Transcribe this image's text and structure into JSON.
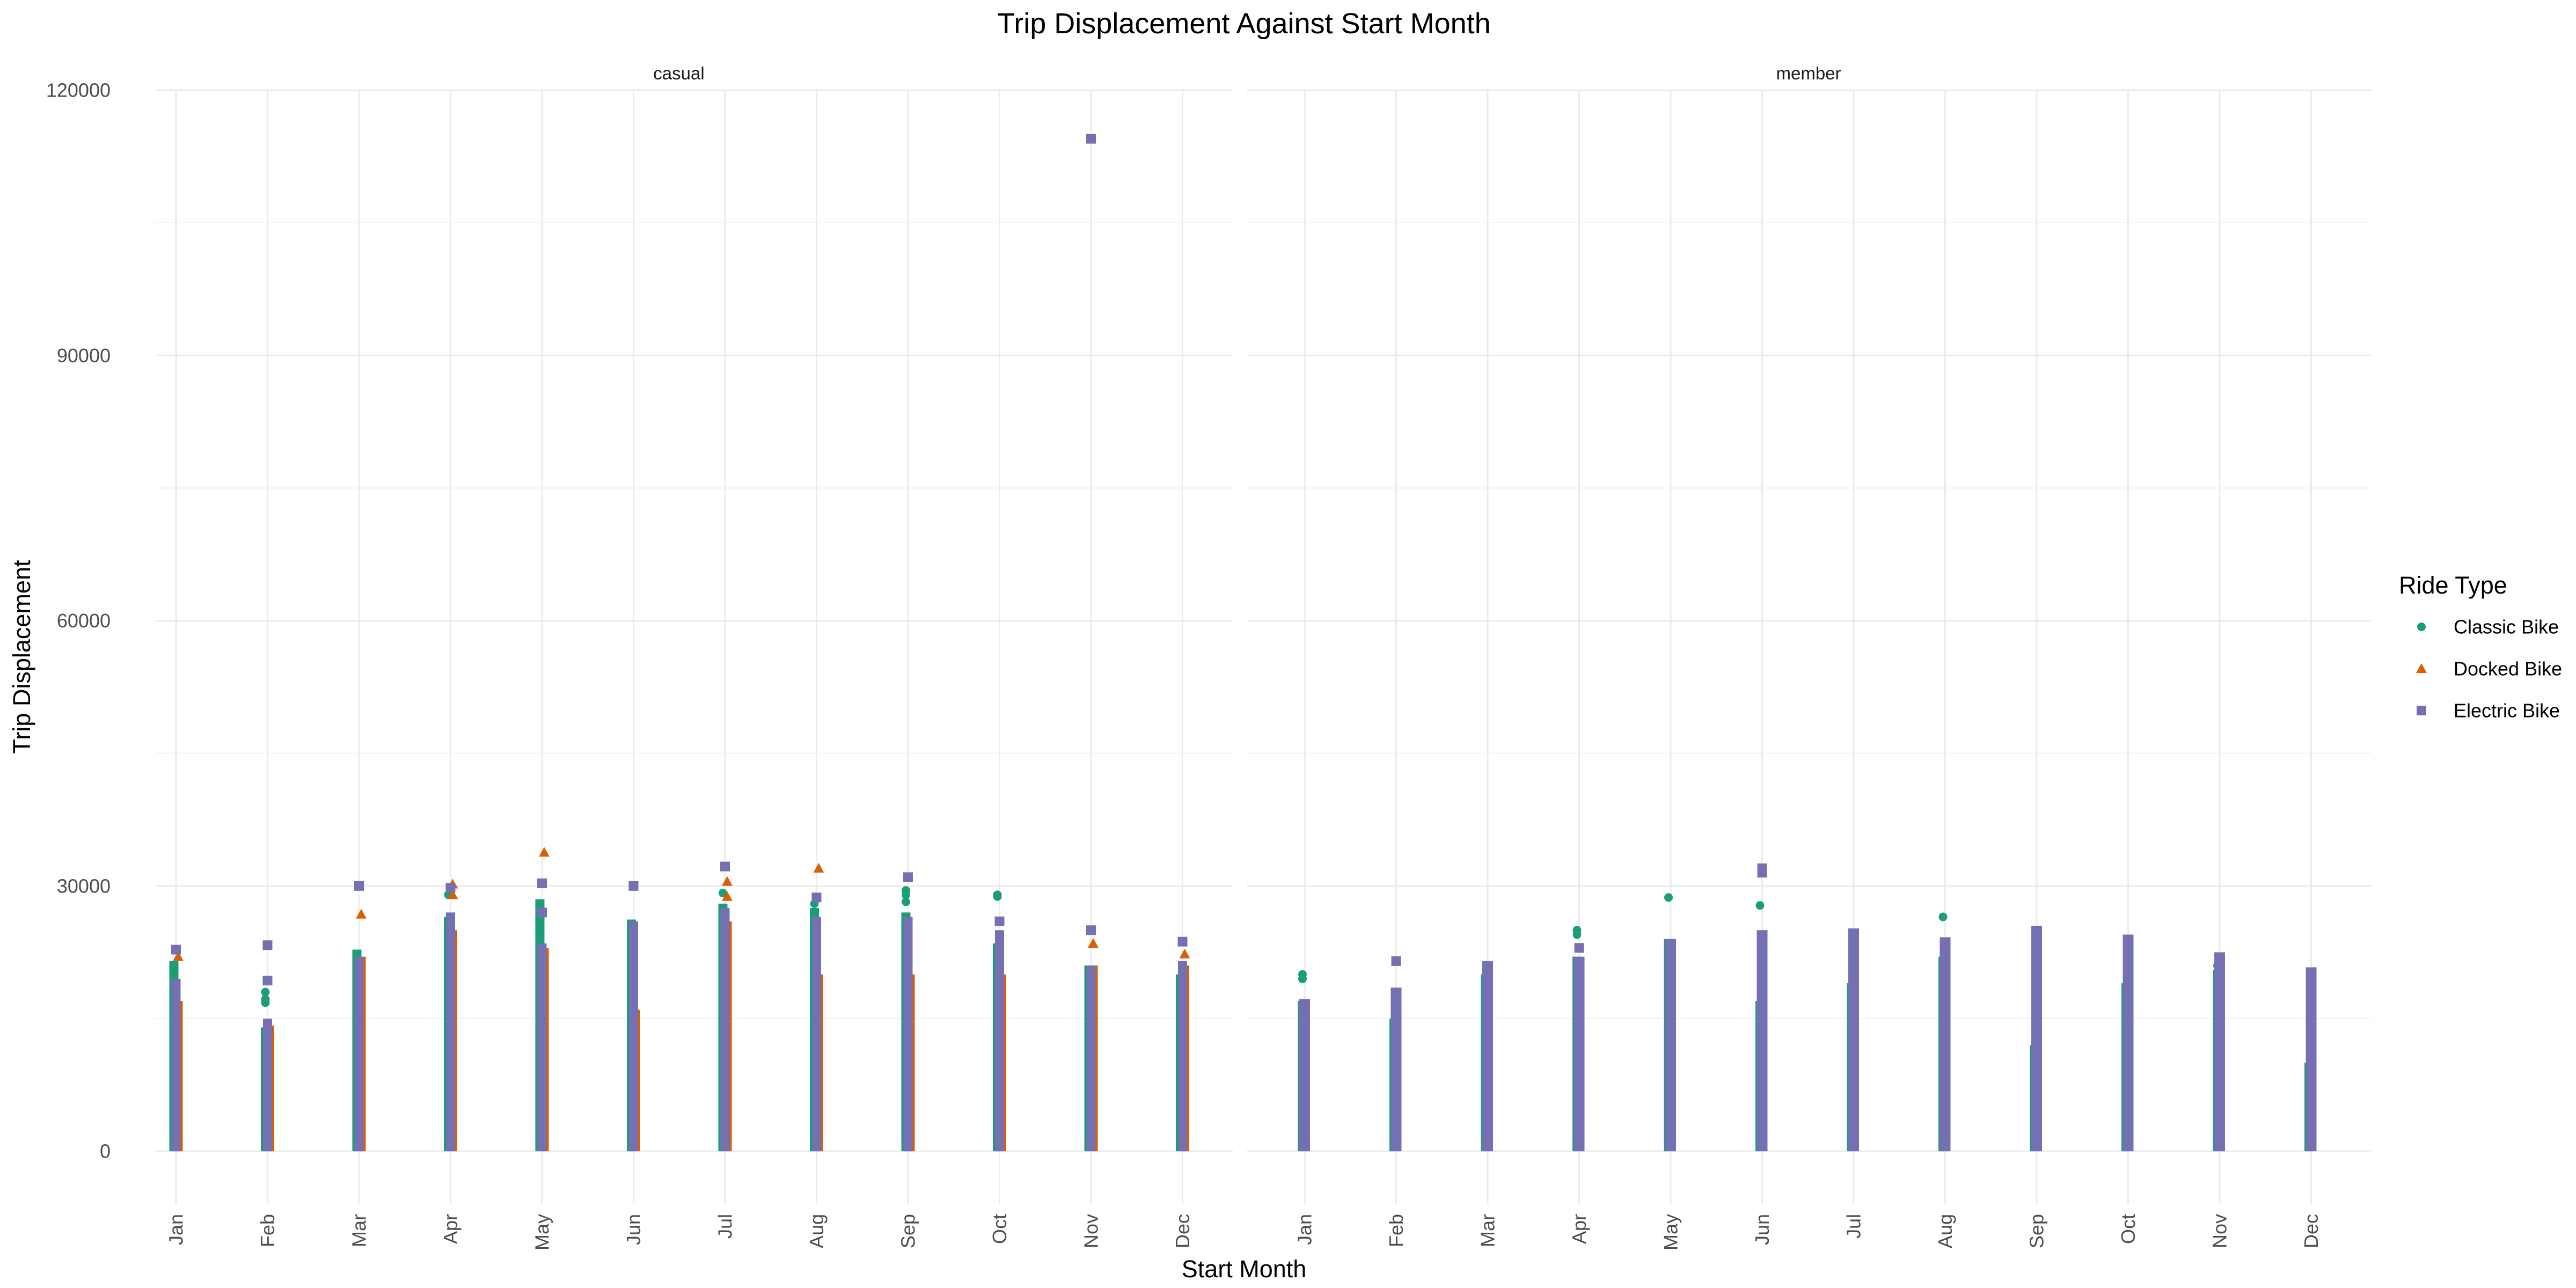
{
  "chart_data": {
    "type": "scatter",
    "title": "Trip Displacement Against Start Month",
    "xlabel": "Start Month",
    "ylabel": "Trip Displacement",
    "categories": [
      "Jan",
      "Feb",
      "Mar",
      "Apr",
      "May",
      "Jun",
      "Jul",
      "Aug",
      "Sep",
      "Oct",
      "Nov",
      "Dec"
    ],
    "yticks": [
      0,
      30000,
      60000,
      90000,
      120000
    ],
    "ylim": [
      -6000,
      120000
    ],
    "grid": true,
    "legend": {
      "title": "Ride Type",
      "placement": "right",
      "entries": [
        {
          "name": "Classic Bike",
          "color": "#1b9e77",
          "shape": "circle"
        },
        {
          "name": "Docked Bike",
          "color": "#d95f02",
          "shape": "triangle"
        },
        {
          "name": "Electric Bike",
          "color": "#7570b3",
          "shape": "square"
        }
      ]
    },
    "facets": [
      {
        "name": "casual",
        "series": {
          "Classic Bike": [
            {
              "max": 21500,
              "outliers": [
                20500,
                18500
              ]
            },
            {
              "max": 14000,
              "outliers": [
                18000,
                17200,
                16800
              ]
            },
            {
              "max": 22800,
              "outliers": []
            },
            {
              "max": 26500,
              "outliers": [
                29000
              ]
            },
            {
              "max": 28500,
              "outliers": [
                28000,
                27200
              ]
            },
            {
              "max": 26200,
              "outliers": []
            },
            {
              "max": 28000,
              "outliers": [
                29200,
                27500
              ]
            },
            {
              "max": 27500,
              "outliers": [
                28000
              ]
            },
            {
              "max": 27000,
              "outliers": [
                29500,
                29000,
                28200,
                25000
              ]
            },
            {
              "max": 23500,
              "outliers": [
                28800,
                29000
              ]
            },
            {
              "max": 21000,
              "outliers": []
            },
            {
              "max": 20000,
              "outliers": []
            }
          ],
          "Docked Bike": [
            {
              "max": 17000,
              "outliers": [
                22000
              ]
            },
            {
              "max": 14200,
              "outliers": []
            },
            {
              "max": 22000,
              "outliers": [
                26800
              ]
            },
            {
              "max": 25000,
              "outliers": [
                30200,
                29000
              ]
            },
            {
              "max": 23000,
              "outliers": [
                33800
              ]
            },
            {
              "max": 16000,
              "outliers": []
            },
            {
              "max": 26000,
              "outliers": [
                30500,
                28800
              ]
            },
            {
              "max": 20000,
              "outliers": [
                32000
              ]
            },
            {
              "max": 20000,
              "outliers": []
            },
            {
              "max": 20000,
              "outliers": []
            },
            {
              "max": 21000,
              "outliers": [
                23500
              ]
            },
            {
              "max": 21000,
              "outliers": [
                22300
              ]
            }
          ],
          "Electric Bike": [
            {
              "max": 19500,
              "outliers": [
                22800
              ]
            },
            {
              "max": 15000,
              "outliers": [
                23300,
                19300
              ]
            },
            {
              "max": 22000,
              "outliers": [
                30000
              ]
            },
            {
              "max": 27000,
              "outliers": [
                29800
              ]
            },
            {
              "max": 23500,
              "outliers": [
                30300,
                27000
              ]
            },
            {
              "max": 26000,
              "outliers": [
                30000
              ]
            },
            {
              "max": 27500,
              "outliers": [
                32200
              ]
            },
            {
              "max": 26500,
              "outliers": [
                28700
              ]
            },
            {
              "max": 26500,
              "outliers": [
                31000
              ]
            },
            {
              "max": 25000,
              "outliers": [
                26000
              ]
            },
            {
              "max": 21000,
              "outliers": [
                114500,
                25000
              ]
            },
            {
              "max": 21500,
              "outliers": [
                23700
              ]
            }
          ]
        }
      },
      {
        "name": "member",
        "series": {
          "Classic Bike": [
            {
              "max": 17000,
              "outliers": [
                20000,
                19500
              ]
            },
            {
              "max": 15000,
              "outliers": []
            },
            {
              "max": 20000,
              "outliers": []
            },
            {
              "max": 22000,
              "outliers": [
                25000,
                24500
              ]
            },
            {
              "max": 24000,
              "outliers": [
                28700,
                23000,
                21000
              ]
            },
            {
              "max": 17000,
              "outliers": [
                27800
              ]
            },
            {
              "max": 19000,
              "outliers": []
            },
            {
              "max": 22000,
              "outliers": [
                26500
              ]
            },
            {
              "max": 12000,
              "outliers": []
            },
            {
              "max": 19000,
              "outliers": []
            },
            {
              "max": 20500,
              "outliers": [
                21000
              ]
            },
            {
              "max": 10000,
              "outliers": []
            }
          ],
          "Electric Bike": [
            {
              "max": 17200,
              "outliers": []
            },
            {
              "max": 18500,
              "outliers": [
                21500
              ]
            },
            {
              "max": 21500,
              "outliers": []
            },
            {
              "max": 22000,
              "outliers": [
                23000
              ]
            },
            {
              "max": 24000,
              "outliers": []
            },
            {
              "max": 25000,
              "outliers": [
                32000,
                31500
              ]
            },
            {
              "max": 25200,
              "outliers": []
            },
            {
              "max": 24200,
              "outliers": []
            },
            {
              "max": 25500,
              "outliers": []
            },
            {
              "max": 24500,
              "outliers": []
            },
            {
              "max": 22500,
              "outliers": []
            },
            {
              "max": 20800,
              "outliers": []
            }
          ]
        }
      }
    ]
  }
}
